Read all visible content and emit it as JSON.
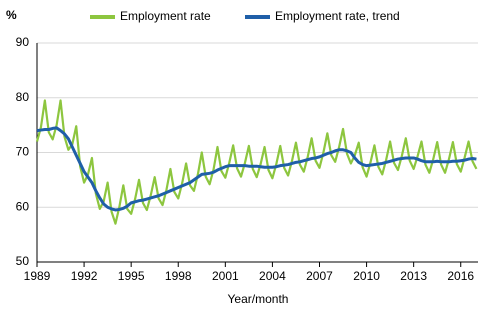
{
  "chart_data": {
    "type": "line",
    "y_label": "%",
    "x_label": "Year/month",
    "x": [
      1989,
      1989.25,
      1989.5,
      1989.75,
      1990,
      1990.25,
      1990.5,
      1990.75,
      1991,
      1991.25,
      1991.5,
      1991.75,
      1992,
      1992.25,
      1992.5,
      1992.75,
      1993,
      1993.25,
      1993.5,
      1993.75,
      1994,
      1994.25,
      1994.5,
      1994.75,
      1995,
      1995.25,
      1995.5,
      1995.75,
      1996,
      1996.25,
      1996.5,
      1996.75,
      1997,
      1997.25,
      1997.5,
      1997.75,
      1998,
      1998.25,
      1998.5,
      1998.75,
      1999,
      1999.25,
      1999.5,
      1999.75,
      2000,
      2000.25,
      2000.5,
      2000.75,
      2001,
      2001.25,
      2001.5,
      2001.75,
      2002,
      2002.25,
      2002.5,
      2002.75,
      2003,
      2003.25,
      2003.5,
      2003.75,
      2004,
      2004.25,
      2004.5,
      2004.75,
      2005,
      2005.25,
      2005.5,
      2005.75,
      2006,
      2006.25,
      2006.5,
      2006.75,
      2007,
      2007.25,
      2007.5,
      2007.75,
      2008,
      2008.25,
      2008.5,
      2008.75,
      2009,
      2009.25,
      2009.5,
      2009.75,
      2010,
      2010.25,
      2010.5,
      2010.75,
      2011,
      2011.25,
      2011.5,
      2011.75,
      2012,
      2012.25,
      2012.5,
      2012.75,
      2013,
      2013.25,
      2013.5,
      2013.75,
      2014,
      2014.25,
      2014.5,
      2014.75,
      2015,
      2015.25,
      2015.5,
      2015.75,
      2016,
      2016.25,
      2016.5,
      2016.75,
      2017
    ],
    "series": [
      {
        "name": "Employment rate",
        "color": "#8dc63f",
        "width": 2.2,
        "values": [
          72.0,
          74.6,
          79.5,
          73.7,
          72.4,
          75.0,
          79.5,
          72.9,
          70.5,
          71.5,
          74.8,
          67.5,
          64.5,
          66.0,
          69.0,
          62.5,
          59.7,
          61.1,
          64.5,
          59.2,
          57.0,
          60.1,
          64.0,
          59.7,
          58.8,
          61.5,
          65.0,
          60.8,
          59.5,
          62.2,
          65.5,
          61.6,
          60.4,
          63.2,
          67.0,
          62.8,
          61.6,
          64.4,
          68.0,
          64.0,
          63.0,
          66.0,
          70.0,
          65.6,
          64.2,
          66.9,
          71.0,
          66.6,
          65.4,
          68.1,
          71.3,
          67.1,
          65.6,
          68.1,
          71.2,
          67.0,
          65.5,
          67.9,
          71.0,
          66.8,
          65.3,
          67.9,
          71.2,
          67.2,
          65.8,
          68.5,
          71.8,
          67.8,
          66.5,
          69.2,
          72.6,
          68.5,
          67.2,
          70.0,
          73.5,
          69.5,
          68.3,
          71.0,
          74.3,
          69.8,
          68.0,
          69.5,
          71.8,
          67.3,
          65.6,
          68.2,
          71.3,
          67.4,
          66.0,
          68.7,
          72.0,
          68.1,
          66.8,
          69.4,
          72.6,
          68.5,
          67.0,
          69.3,
          72.0,
          67.8,
          66.3,
          68.8,
          71.9,
          67.8,
          66.3,
          68.8,
          71.9,
          67.9,
          66.5,
          69.1,
          72.0,
          68.4,
          67.0
        ]
      },
      {
        "name": "Employment rate, trend",
        "color": "#1f5fa8",
        "width": 3,
        "values": [
          74.0,
          74.1,
          74.2,
          74.2,
          74.4,
          74.5,
          74.0,
          73.4,
          72.5,
          71.0,
          69.5,
          68.0,
          66.5,
          65.5,
          64.5,
          63.0,
          61.7,
          60.6,
          60.0,
          59.7,
          59.5,
          59.6,
          59.8,
          60.2,
          60.8,
          61.0,
          61.2,
          61.3,
          61.5,
          61.7,
          61.9,
          62.1,
          62.4,
          62.7,
          63.0,
          63.3,
          63.6,
          63.9,
          64.2,
          64.5,
          65.0,
          65.5,
          66.0,
          66.1,
          66.2,
          66.4,
          66.8,
          67.1,
          67.4,
          67.6,
          67.6,
          67.6,
          67.6,
          67.6,
          67.5,
          67.5,
          67.5,
          67.4,
          67.3,
          67.3,
          67.3,
          67.4,
          67.6,
          67.7,
          67.8,
          68.0,
          68.2,
          68.3,
          68.5,
          68.7,
          68.9,
          69.0,
          69.2,
          69.5,
          69.8,
          70.0,
          70.3,
          70.5,
          70.5,
          70.3,
          70.0,
          69.0,
          68.2,
          67.8,
          67.6,
          67.7,
          67.8,
          67.9,
          68.0,
          68.2,
          68.4,
          68.6,
          68.8,
          68.9,
          69.0,
          69.0,
          69.0,
          68.8,
          68.5,
          68.3,
          68.3,
          68.3,
          68.4,
          68.3,
          68.3,
          68.3,
          68.4,
          68.4,
          68.5,
          68.6,
          68.8,
          68.9,
          68.8
        ]
      }
    ],
    "xlim": [
      1989,
      2017.1
    ],
    "xticks": [
      1989,
      1992,
      1995,
      1998,
      2001,
      2004,
      2007,
      2010,
      2013,
      2016
    ],
    "ylim": [
      50,
      90
    ],
    "yticks": [
      50,
      60,
      70,
      80,
      90
    ],
    "grid": true,
    "legend": "top"
  }
}
